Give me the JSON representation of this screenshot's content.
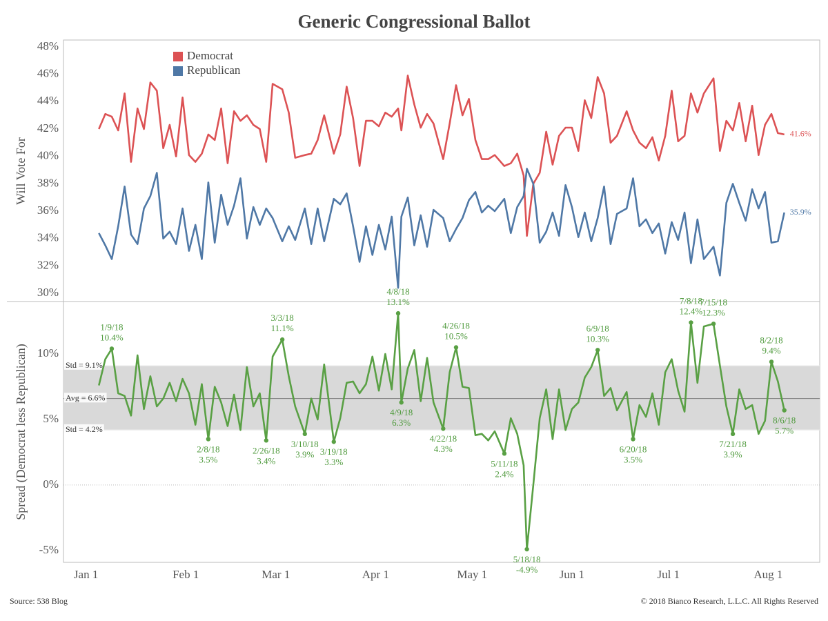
{
  "footer": {
    "source": "Source: 538 Blog",
    "copyright": "© 2018 Bianco Research, L.L.C. All Rights Reserved"
  },
  "chart_data": [
    {
      "type": "line",
      "title": "Generic Congressional Ballot",
      "ylabel": "Will Vote For",
      "legend": "upper left",
      "xlim": [
        -7,
        228
      ],
      "ylim": [
        29.4,
        48.5
      ],
      "yticks": [
        {
          "value": 30,
          "label": "30%"
        },
        {
          "value": 32,
          "label": "32%"
        },
        {
          "value": 34,
          "label": "34%"
        },
        {
          "value": 36,
          "label": "36%"
        },
        {
          "value": 38,
          "label": "38%"
        },
        {
          "value": 40,
          "label": "40%"
        },
        {
          "value": 42,
          "label": "42%"
        },
        {
          "value": 44,
          "label": "44%"
        },
        {
          "value": 46,
          "label": "46%"
        },
        {
          "value": 48,
          "label": "48%"
        }
      ],
      "x": [
        4,
        6,
        8,
        10,
        12,
        14,
        16,
        18,
        20,
        22,
        24,
        26,
        28,
        30,
        32,
        34,
        36,
        38,
        40,
        42,
        44,
        46,
        48,
        50,
        52,
        54,
        56,
        58,
        61,
        63,
        65,
        68,
        70,
        72,
        74,
        77,
        79,
        81,
        83,
        85,
        87,
        89,
        91,
        93,
        95,
        97,
        98,
        100,
        102,
        104,
        106,
        108,
        111,
        113,
        115,
        117,
        119,
        121,
        123,
        125,
        127,
        130,
        132,
        134,
        136,
        137,
        139,
        141,
        143,
        145,
        147,
        149,
        151,
        153,
        155,
        157,
        159,
        161,
        163,
        165,
        168,
        170,
        172,
        174,
        176,
        178,
        180,
        182,
        184,
        186,
        188,
        190,
        192,
        195,
        197,
        199,
        201,
        203,
        205,
        207,
        209,
        211,
        213,
        215,
        217
      ],
      "series": [
        {
          "name": "Democrat",
          "color": "#dc5254",
          "end_label": "41.6%",
          "values": [
            42.0,
            43.1,
            42.9,
            41.9,
            44.6,
            39.6,
            43.5,
            42.0,
            45.4,
            44.8,
            40.6,
            42.3,
            40.0,
            44.3,
            40.1,
            39.6,
            40.2,
            41.6,
            41.2,
            43.5,
            39.5,
            43.3,
            42.6,
            43.0,
            42.3,
            42.0,
            39.6,
            45.3,
            44.9,
            43.2,
            39.9,
            40.1,
            40.2,
            41.2,
            43.0,
            40.2,
            41.6,
            45.1,
            42.8,
            39.3,
            42.6,
            42.6,
            42.2,
            43.2,
            42.9,
            43.5,
            41.9,
            45.9,
            43.8,
            42.1,
            43.1,
            42.4,
            39.8,
            42.4,
            45.2,
            43.0,
            44.2,
            41.2,
            39.8,
            39.8,
            40.1,
            39.3,
            39.5,
            40.2,
            38.6,
            34.2,
            38.0,
            38.8,
            41.8,
            39.4,
            41.5,
            42.1,
            42.1,
            40.4,
            44.1,
            42.8,
            45.8,
            44.6,
            41.0,
            41.5,
            43.3,
            41.9,
            41.0,
            40.6,
            41.4,
            39.7,
            41.5,
            44.8,
            41.1,
            41.5,
            44.6,
            43.2,
            44.6,
            45.7,
            40.4,
            42.6,
            41.9,
            43.9,
            41.1,
            43.7,
            40.1,
            42.3,
            43.1,
            41.7,
            41.6
          ]
        },
        {
          "name": "Republican",
          "color": "#4f78a6",
          "end_label": "35.9%",
          "values": [
            34.4,
            33.5,
            32.5,
            34.9,
            37.8,
            34.3,
            33.6,
            36.2,
            37.1,
            38.8,
            34.0,
            34.5,
            33.6,
            36.2,
            33.1,
            35.0,
            32.5,
            38.1,
            33.7,
            37.2,
            35.0,
            36.4,
            38.4,
            34.0,
            36.3,
            35.0,
            36.2,
            35.5,
            33.8,
            34.9,
            33.9,
            36.2,
            33.6,
            36.2,
            33.8,
            36.9,
            36.5,
            37.3,
            34.9,
            32.3,
            34.9,
            32.8,
            35.0,
            33.2,
            35.6,
            30.4,
            35.6,
            37.0,
            33.5,
            35.7,
            33.4,
            36.1,
            35.5,
            33.8,
            34.7,
            35.5,
            36.8,
            37.4,
            35.9,
            36.4,
            36.0,
            36.9,
            34.4,
            36.3,
            37.1,
            39.1,
            38.0,
            33.7,
            34.5,
            35.9,
            34.2,
            37.9,
            36.3,
            34.1,
            35.9,
            33.8,
            35.5,
            37.8,
            33.6,
            35.8,
            36.2,
            38.4,
            34.9,
            35.4,
            34.4,
            35.1,
            32.9,
            35.2,
            33.9,
            35.9,
            32.2,
            35.4,
            32.5,
            33.4,
            31.3,
            36.6,
            38.0,
            36.6,
            35.3,
            37.6,
            36.2,
            37.4,
            33.7,
            33.8,
            35.9
          ]
        }
      ]
    },
    {
      "type": "line",
      "ylabel": "Spread (Democrat less Republican)",
      "color": "#59a044",
      "zero_line": true,
      "xlim": [
        -7,
        228
      ],
      "ylim": [
        -5.9,
        14
      ],
      "xticks": [
        {
          "value": 0,
          "label": "Jan 1"
        },
        {
          "value": 31,
          "label": "Feb 1"
        },
        {
          "value": 59,
          "label": "Mar 1"
        },
        {
          "value": 90,
          "label": "Apr 1"
        },
        {
          "value": 120,
          "label": "May 1"
        },
        {
          "value": 151,
          "label": "Jun 1"
        },
        {
          "value": 181,
          "label": "Jul 1"
        },
        {
          "value": 212,
          "label": "Aug 1"
        }
      ],
      "yticks": [
        {
          "value": 10,
          "label": "10%"
        },
        {
          "value": 5,
          "label": "5%"
        },
        {
          "value": 0,
          "label": "0%"
        },
        {
          "value": -5,
          "label": "-5%"
        }
      ],
      "reference_lines": [
        {
          "label": "Std = 9.1%",
          "value": 9.1
        },
        {
          "label": "Avg = 6.6%",
          "value": 6.6
        },
        {
          "label": "Std = 4.2%",
          "value": 4.2
        }
      ],
      "x": [
        4,
        6,
        8,
        10,
        12,
        14,
        16,
        18,
        20,
        22,
        24,
        26,
        28,
        30,
        32,
        34,
        36,
        38,
        40,
        42,
        44,
        46,
        48,
        50,
        52,
        54,
        56,
        58,
        61,
        63,
        65,
        68,
        70,
        72,
        74,
        77,
        79,
        81,
        83,
        85,
        87,
        89,
        91,
        93,
        95,
        97,
        98,
        100,
        102,
        104,
        106,
        108,
        111,
        113,
        115,
        117,
        119,
        121,
        123,
        125,
        127,
        130,
        132,
        134,
        136,
        137,
        139,
        141,
        143,
        145,
        147,
        149,
        151,
        153,
        155,
        157,
        159,
        161,
        163,
        165,
        168,
        170,
        172,
        174,
        176,
        178,
        180,
        182,
        184,
        186,
        188,
        190,
        192,
        195,
        197,
        199,
        201,
        203,
        205,
        207,
        209,
        211,
        213,
        215,
        217
      ],
      "values": [
        7.6,
        9.6,
        10.4,
        7.0,
        6.8,
        5.3,
        9.9,
        5.8,
        8.3,
        6.0,
        6.6,
        7.8,
        6.4,
        8.1,
        7.0,
        4.6,
        7.7,
        3.5,
        7.5,
        6.3,
        4.5,
        6.9,
        4.2,
        9.0,
        6.0,
        7.0,
        3.4,
        9.8,
        11.1,
        8.3,
        6.0,
        3.9,
        6.6,
        5.0,
        9.2,
        3.3,
        5.1,
        7.8,
        7.9,
        7.0,
        7.7,
        9.8,
        7.2,
        10.0,
        7.3,
        13.1,
        6.3,
        8.9,
        10.3,
        6.4,
        9.7,
        6.3,
        4.3,
        8.6,
        10.5,
        7.5,
        7.4,
        3.8,
        3.9,
        3.4,
        4.1,
        2.4,
        5.1,
        3.9,
        1.5,
        -4.9,
        0.0,
        5.1,
        7.3,
        3.5,
        7.3,
        4.2,
        5.8,
        6.3,
        8.2,
        9.0,
        10.3,
        6.8,
        7.4,
        5.7,
        7.1,
        3.5,
        6.1,
        5.2,
        7.0,
        4.6,
        8.6,
        9.6,
        7.2,
        5.6,
        12.4,
        7.8,
        12.1,
        12.3,
        9.1,
        6.0,
        3.9,
        7.3,
        5.8,
        6.1,
        3.9,
        4.9,
        9.4,
        7.9,
        5.7
      ],
      "annotations": [
        {
          "label": "1/9/18",
          "value_label": "10.4%",
          "x": 8,
          "y": 10.4
        },
        {
          "label": "2/8/18",
          "value_label": "3.5%",
          "x": 38,
          "y": 3.5
        },
        {
          "label": "2/26/18",
          "value_label": "3.4%",
          "x": 56,
          "y": 3.4
        },
        {
          "label": "3/3/18",
          "value_label": "11.1%",
          "x": 61,
          "y": 11.1
        },
        {
          "label": "3/10/18",
          "value_label": "3.9%",
          "x": 68,
          "y": 3.9
        },
        {
          "label": "3/19/18",
          "value_label": "3.3%",
          "x": 77,
          "y": 3.3
        },
        {
          "label": "4/8/18",
          "value_label": "13.1%",
          "x": 97,
          "y": 13.1
        },
        {
          "label": "4/9/18",
          "value_label": "6.3%",
          "x": 98,
          "y": 6.3
        },
        {
          "label": "4/22/18",
          "value_label": "4.3%",
          "x": 111,
          "y": 4.3
        },
        {
          "label": "4/26/18",
          "value_label": "10.5%",
          "x": 115,
          "y": 10.5
        },
        {
          "label": "5/11/18",
          "value_label": "2.4%",
          "x": 130,
          "y": 2.4
        },
        {
          "label": "5/18/18",
          "value_label": "-4.9%",
          "x": 137,
          "y": -4.9
        },
        {
          "label": "6/9/18",
          "value_label": "10.3%",
          "x": 159,
          "y": 10.3
        },
        {
          "label": "6/20/18",
          "value_label": "3.5%",
          "x": 170,
          "y": 3.5
        },
        {
          "label": "7/8/18",
          "value_label": "12.4%",
          "x": 188,
          "y": 12.4
        },
        {
          "label": "7/15/18",
          "value_label": "12.3%",
          "x": 195,
          "y": 12.3
        },
        {
          "label": "7/21/18",
          "value_label": "3.9%",
          "x": 201,
          "y": 3.9
        },
        {
          "label": "8/2/18",
          "value_label": "9.4%",
          "x": 213,
          "y": 9.4
        },
        {
          "label": "8/6/18",
          "value_label": "5.7%",
          "x": 217,
          "y": 5.7
        }
      ]
    }
  ]
}
